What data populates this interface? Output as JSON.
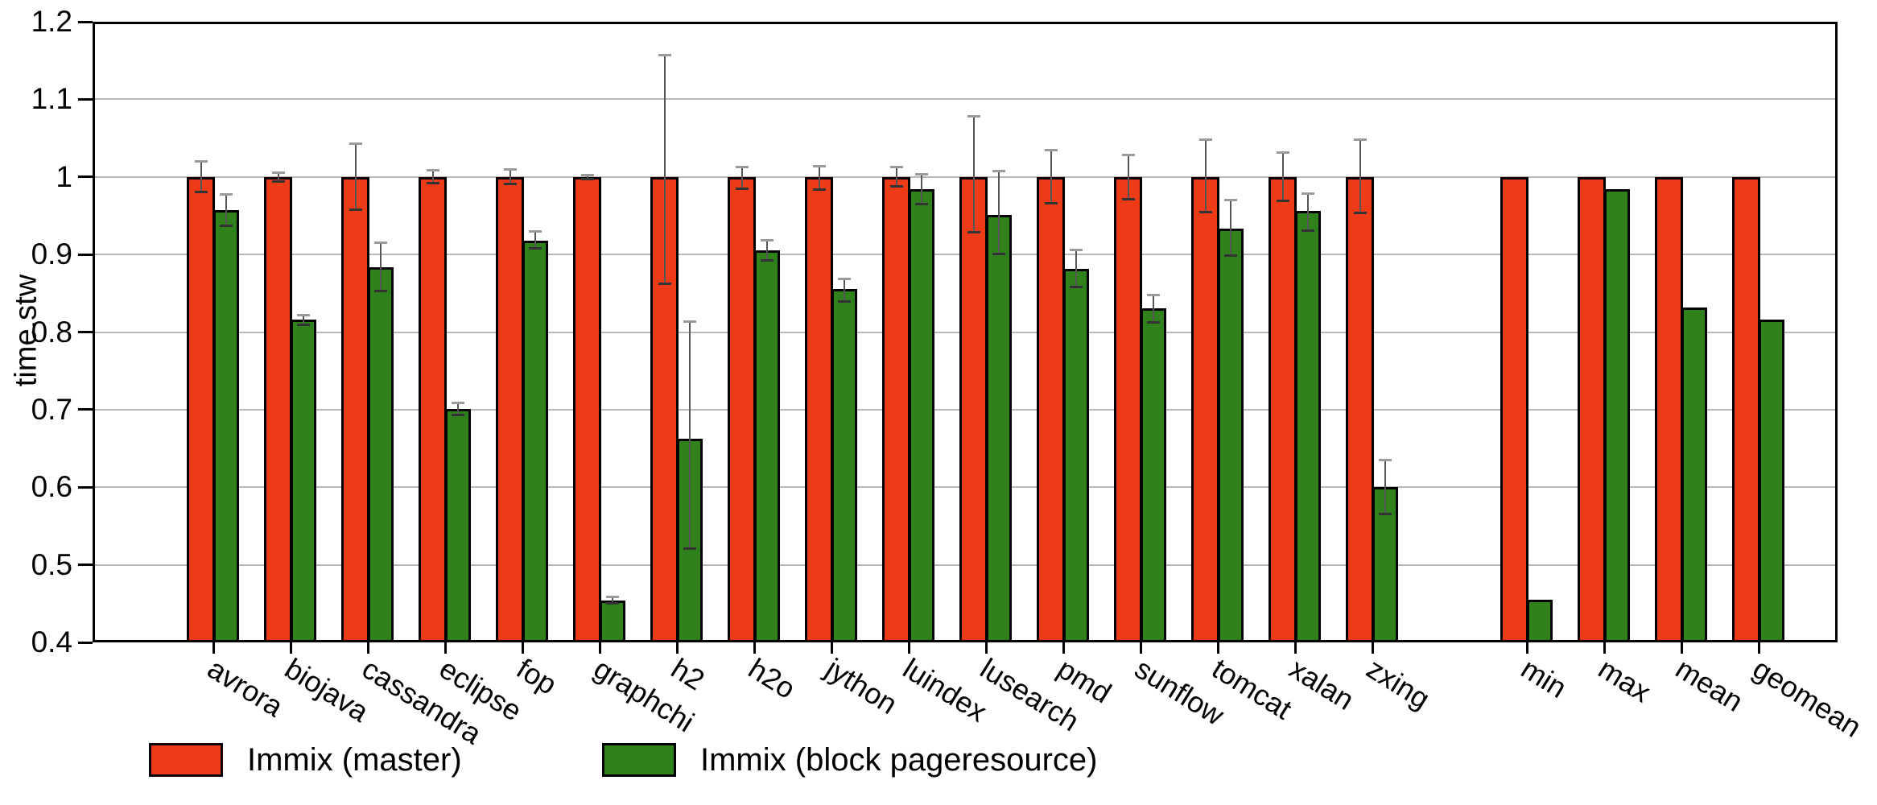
{
  "chart_data": {
    "type": "bar",
    "title": "",
    "xlabel": "",
    "ylabel": "time.stw",
    "ylim": [
      0.4,
      1.2
    ],
    "yticks": [
      {
        "value": 0.4,
        "label": "0.4"
      },
      {
        "value": 0.5,
        "label": "0.5"
      },
      {
        "value": 0.6,
        "label": "0.6"
      },
      {
        "value": 0.7,
        "label": "0.7"
      },
      {
        "value": 0.8,
        "label": "0.8"
      },
      {
        "value": 0.9,
        "label": "0.9"
      },
      {
        "value": 1.0,
        "label": "1"
      },
      {
        "value": 1.1,
        "label": "1.1"
      },
      {
        "value": 1.2,
        "label": "1.2"
      }
    ],
    "grid": "horizontal-only",
    "legend_position": "bottom",
    "series": [
      {
        "name": "Immix (master)",
        "color": "#ee3b17"
      },
      {
        "name": "Immix (block pageresource)",
        "color": "#2f811b"
      }
    ],
    "summary_gap_before_index": 16,
    "groups": [
      {
        "label": "avrora",
        "master": {
          "value": 1.0,
          "err_lo": 0.98,
          "err_hi": 1.02
        },
        "block": {
          "value": 0.957,
          "err_lo": 0.936,
          "err_hi": 0.978
        }
      },
      {
        "label": "biojava",
        "master": {
          "value": 1.0,
          "err_lo": 0.994,
          "err_hi": 1.006
        },
        "block": {
          "value": 0.816,
          "err_lo": 0.809,
          "err_hi": 0.822
        }
      },
      {
        "label": "cassandra",
        "master": {
          "value": 1.0,
          "err_lo": 0.957,
          "err_hi": 1.043
        },
        "block": {
          "value": 0.884,
          "err_lo": 0.852,
          "err_hi": 0.916
        }
      },
      {
        "label": "eclipse",
        "master": {
          "value": 1.0,
          "err_lo": 0.991,
          "err_hi": 1.009
        },
        "block": {
          "value": 0.701,
          "err_lo": 0.693,
          "err_hi": 0.709
        }
      },
      {
        "label": "fop",
        "master": {
          "value": 1.0,
          "err_lo": 0.99,
          "err_hi": 1.01
        },
        "block": {
          "value": 0.918,
          "err_lo": 0.907,
          "err_hi": 0.93
        }
      },
      {
        "label": "graphchi",
        "master": {
          "value": 1.0,
          "err_lo": 0.997,
          "err_hi": 1.003
        },
        "block": {
          "value": 0.454,
          "err_lo": 0.45,
          "err_hi": 0.459
        }
      },
      {
        "label": "h2",
        "master": {
          "value": 1.0,
          "err_lo": 0.862,
          "err_hi": 1.157
        },
        "block": {
          "value": 0.662,
          "err_lo": 0.52,
          "err_hi": 0.814
        }
      },
      {
        "label": "h2o",
        "master": {
          "value": 1.0,
          "err_lo": 0.984,
          "err_hi": 1.013
        },
        "block": {
          "value": 0.905,
          "err_lo": 0.892,
          "err_hi": 0.919
        }
      },
      {
        "label": "jython",
        "master": {
          "value": 1.0,
          "err_lo": 0.983,
          "err_hi": 1.014
        },
        "block": {
          "value": 0.855,
          "err_lo": 0.839,
          "err_hi": 0.869
        }
      },
      {
        "label": "luindex",
        "master": {
          "value": 1.0,
          "err_lo": 0.987,
          "err_hi": 1.013
        },
        "block": {
          "value": 0.984,
          "err_lo": 0.964,
          "err_hi": 1.004
        }
      },
      {
        "label": "lusearch",
        "master": {
          "value": 1.0,
          "err_lo": 0.928,
          "err_hi": 1.079
        },
        "block": {
          "value": 0.951,
          "err_lo": 0.9,
          "err_hi": 1.008
        }
      },
      {
        "label": "pmd",
        "master": {
          "value": 1.0,
          "err_lo": 0.966,
          "err_hi": 1.035
        },
        "block": {
          "value": 0.881,
          "err_lo": 0.858,
          "err_hi": 0.906
        }
      },
      {
        "label": "sunflow",
        "master": {
          "value": 1.0,
          "err_lo": 0.971,
          "err_hi": 1.029
        },
        "block": {
          "value": 0.831,
          "err_lo": 0.812,
          "err_hi": 0.848
        }
      },
      {
        "label": "tomcat",
        "master": {
          "value": 1.0,
          "err_lo": 0.954,
          "err_hi": 1.048
        },
        "block": {
          "value": 0.933,
          "err_lo": 0.898,
          "err_hi": 0.971
        }
      },
      {
        "label": "xalan",
        "master": {
          "value": 1.0,
          "err_lo": 0.969,
          "err_hi": 1.032
        },
        "block": {
          "value": 0.956,
          "err_lo": 0.93,
          "err_hi": 0.979
        }
      },
      {
        "label": "zxing",
        "master": {
          "value": 1.0,
          "err_lo": 0.953,
          "err_hi": 1.048
        },
        "block": {
          "value": 0.6,
          "err_lo": 0.565,
          "err_hi": 0.636
        }
      },
      {
        "label": "min",
        "master": {
          "value": 1.0,
          "err_lo": null,
          "err_hi": null
        },
        "block": {
          "value": 0.455,
          "err_lo": null,
          "err_hi": null
        }
      },
      {
        "label": "max",
        "master": {
          "value": 1.0,
          "err_lo": null,
          "err_hi": null
        },
        "block": {
          "value": 0.984,
          "err_lo": null,
          "err_hi": null
        }
      },
      {
        "label": "mean",
        "master": {
          "value": 1.0,
          "err_lo": null,
          "err_hi": null
        },
        "block": {
          "value": 0.832,
          "err_lo": null,
          "err_hi": null
        }
      },
      {
        "label": "geomean",
        "master": {
          "value": 1.0,
          "err_lo": null,
          "err_hi": null
        },
        "block": {
          "value": 0.816,
          "err_lo": null,
          "err_hi": null
        }
      }
    ]
  }
}
